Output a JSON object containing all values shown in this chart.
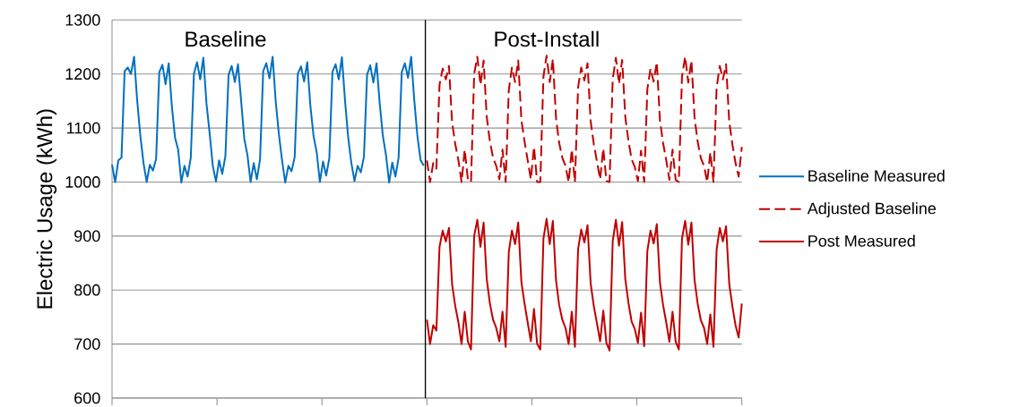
{
  "chart_data": {
    "type": "line",
    "ylabel": "Electric Usage (kWh)",
    "categories": [
      null,
      null,
      null,
      null,
      null,
      null,
      null,
      null,
      null,
      null,
      null,
      null,
      null,
      null,
      null,
      null,
      null,
      null,
      null,
      null,
      null,
      null,
      null,
      null,
      null,
      null,
      null,
      null,
      null,
      null,
      null,
      null,
      null,
      null,
      null,
      null,
      null,
      null,
      null,
      null,
      null,
      null,
      null,
      null,
      null,
      null,
      null,
      null,
      null,
      null,
      null,
      null,
      null,
      null,
      null,
      null,
      null,
      null,
      null,
      null,
      null,
      null,
      null,
      null,
      null,
      null,
      null,
      null,
      null,
      null,
      null,
      null,
      null,
      null,
      null,
      null,
      null,
      null,
      null,
      null,
      null,
      null,
      null,
      null,
      null,
      null,
      null,
      null,
      null,
      null,
      null,
      null,
      null,
      null,
      null,
      null,
      null,
      null,
      null,
      null,
      null,
      null,
      null,
      null,
      null,
      null,
      null,
      null,
      null,
      null,
      null,
      null,
      null,
      null,
      null,
      null,
      null,
      null,
      null,
      null,
      null,
      null,
      null,
      null,
      null,
      null,
      null,
      null,
      null,
      null,
      null,
      null,
      null,
      null,
      null,
      null,
      null,
      null,
      null,
      null,
      null,
      null,
      null,
      null,
      null,
      null,
      null,
      null,
      null,
      null,
      null,
      null,
      null,
      null,
      null,
      null,
      null,
      null,
      null,
      null,
      null,
      null,
      null,
      null,
      null,
      null,
      null,
      null,
      null,
      null,
      null,
      null,
      null,
      null,
      null,
      null,
      null,
      null,
      null,
      null,
      null,
      null,
      null,
      null,
      null,
      null,
      null,
      null,
      null,
      null,
      null,
      null,
      null,
      null,
      null,
      null,
      null,
      null,
      null,
      null,
      null
    ],
    "ylim": [
      600,
      1300
    ],
    "yticks": [
      600,
      700,
      800,
      900,
      1000,
      1100,
      1200,
      1300
    ],
    "grid": "y",
    "legend": "right",
    "marker": "none",
    "annotations": [
      "Baseline",
      "Post-Install"
    ],
    "series": [
      {
        "name": "Baseline Measured",
        "color": "#0070c0",
        "line_style": "solid",
        "values": [
          1032,
          1000,
          1040,
          1045,
          1205,
          1212,
          1200,
          1232,
          1150,
          1085,
          1035,
          1000,
          1032,
          1021,
          1043,
          1203,
          1217,
          1181,
          1220,
          1140,
          1082,
          1060,
          999,
          1030,
          1010,
          1045,
          1200,
          1222,
          1190,
          1230,
          1145,
          1090,
          1030,
          1001,
          1040,
          1015,
          1048,
          1198,
          1215,
          1185,
          1218,
          1150,
          1080,
          1050,
          1000,
          1035,
          1005,
          1042,
          1205,
          1220,
          1192,
          1232,
          1148,
          1088,
          1040,
          999,
          1030,
          1020,
          1046,
          1200,
          1214,
          1186,
          1222,
          1140,
          1085,
          1055,
          1000,
          1038,
          1012,
          1044,
          1204,
          1218,
          1190,
          1231,
          1150,
          1082,
          1035,
          1002,
          1030,
          1018,
          1047,
          1199,
          1216,
          1184,
          1220,
          1146,
          1086,
          1050,
          999,
          1036,
          1010,
          1045,
          1203,
          1220,
          1193,
          1232,
          1150,
          1084,
          1040,
          1030,
          null,
          null,
          null,
          null,
          null,
          null,
          null,
          null,
          null,
          null,
          null,
          null,
          null,
          null,
          null,
          null,
          null,
          null,
          null,
          null,
          null,
          null,
          null,
          null,
          null,
          null,
          null,
          null,
          null,
          null,
          null,
          null,
          null,
          null,
          null,
          null,
          null,
          null,
          null,
          null,
          null,
          null,
          null,
          null,
          null,
          null,
          null,
          null,
          null,
          null,
          null,
          null,
          null,
          null,
          null,
          null,
          null,
          null,
          null,
          null,
          null,
          null,
          null,
          null,
          null,
          null,
          null,
          null,
          null,
          null,
          null,
          null,
          null,
          null,
          null,
          null,
          null,
          null,
          null,
          null,
          null,
          null,
          null,
          null,
          null,
          null,
          null,
          null,
          null,
          null,
          null,
          null,
          null,
          null,
          null,
          null,
          null,
          null,
          null,
          null,
          null
        ]
      },
      {
        "name": "Adjusted Baseline",
        "color": "#c00000",
        "line_style": "dashed",
        "values": [
          null,
          null,
          null,
          null,
          null,
          null,
          null,
          null,
          null,
          null,
          null,
          null,
          null,
          null,
          null,
          null,
          null,
          null,
          null,
          null,
          null,
          null,
          null,
          null,
          null,
          null,
          null,
          null,
          null,
          null,
          null,
          null,
          null,
          null,
          null,
          null,
          null,
          null,
          null,
          null,
          null,
          null,
          null,
          null,
          null,
          null,
          null,
          null,
          null,
          null,
          null,
          null,
          null,
          null,
          null,
          null,
          null,
          null,
          null,
          null,
          null,
          null,
          null,
          null,
          null,
          null,
          null,
          null,
          null,
          null,
          null,
          null,
          null,
          null,
          null,
          null,
          null,
          null,
          null,
          null,
          null,
          null,
          null,
          null,
          null,
          null,
          null,
          null,
          null,
          null,
          null,
          null,
          null,
          null,
          null,
          null,
          null,
          null,
          null,
          null,
          1040,
          1000,
          1035,
          1025,
          1180,
          1210,
          1190,
          1215,
          1110,
          1070,
          1040,
          1000,
          1060,
          1005,
          1000,
          1200,
          1232,
          1180,
          1225,
          1120,
          1075,
          1045,
          1030,
          1005,
          1060,
          1000,
          1170,
          1212,
          1185,
          1225,
          1115,
          1075,
          1040,
          1005,
          1065,
          1000,
          1000,
          1195,
          1234,
          1185,
          1228,
          1118,
          1072,
          1045,
          1030,
          1000,
          1060,
          1000,
          1175,
          1212,
          1188,
          1220,
          1112,
          1070,
          1038,
          1005,
          1062,
          1002,
          1000,
          1190,
          1230,
          1182,
          1226,
          1120,
          1076,
          1042,
          1028,
          1002,
          1058,
          1000,
          1172,
          1210,
          1186,
          1222,
          1114,
          1072,
          1040,
          1004,
          1060,
          1004,
          1000,
          1195,
          1232,
          1184,
          1225,
          1118,
          1074,
          1044,
          1030,
          1000,
          1055,
          1000,
          1175,
          1215,
          1190,
          1218,
          1112,
          1070,
          1035,
          1010,
          1065
        ]
      },
      {
        "name": "Post Measured",
        "color": "#c00000",
        "line_style": "solid",
        "values": [
          null,
          null,
          null,
          null,
          null,
          null,
          null,
          null,
          null,
          null,
          null,
          null,
          null,
          null,
          null,
          null,
          null,
          null,
          null,
          null,
          null,
          null,
          null,
          null,
          null,
          null,
          null,
          null,
          null,
          null,
          null,
          null,
          null,
          null,
          null,
          null,
          null,
          null,
          null,
          null,
          null,
          null,
          null,
          null,
          null,
          null,
          null,
          null,
          null,
          null,
          null,
          null,
          null,
          null,
          null,
          null,
          null,
          null,
          null,
          null,
          null,
          null,
          null,
          null,
          null,
          null,
          null,
          null,
          null,
          null,
          null,
          null,
          null,
          null,
          null,
          null,
          null,
          null,
          null,
          null,
          null,
          null,
          null,
          null,
          null,
          null,
          null,
          null,
          null,
          null,
          null,
          null,
          null,
          null,
          null,
          null,
          null,
          null,
          null,
          null,
          745,
          700,
          735,
          725,
          880,
          910,
          890,
          915,
          810,
          770,
          740,
          700,
          760,
          705,
          690,
          900,
          930,
          880,
          925,
          820,
          775,
          745,
          730,
          705,
          760,
          695,
          870,
          910,
          885,
          925,
          815,
          775,
          740,
          705,
          765,
          700,
          690,
          895,
          932,
          885,
          928,
          818,
          772,
          745,
          730,
          700,
          760,
          695,
          875,
          912,
          888,
          920,
          812,
          770,
          738,
          705,
          762,
          702,
          688,
          890,
          930,
          882,
          926,
          820,
          776,
          742,
          728,
          702,
          758,
          696,
          872,
          910,
          886,
          922,
          814,
          772,
          740,
          704,
          760,
          704,
          690,
          895,
          928,
          884,
          925,
          818,
          774,
          744,
          730,
          700,
          755,
          695,
          875,
          915,
          890,
          918,
          812,
          770,
          735,
          712,
          775
        ]
      }
    ]
  }
}
